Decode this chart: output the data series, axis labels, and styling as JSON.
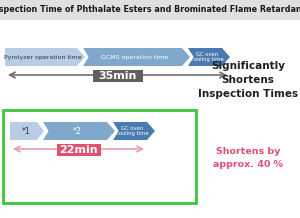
{
  "title": "Inspection Time of Phthalate Esters and Brominated Flame Retardants",
  "title_bg": "#e0e0e0",
  "bg_color": "#ffffff",
  "label1": "Pyrolyzer operation time",
  "label2": "GCMS operation time",
  "label3": "GC oven\ncooling time",
  "label_b1": "*1",
  "label_b2": "*2",
  "label_b3": "GC oven\ncooling time",
  "min35_label": "35min",
  "min22_label": "22min",
  "min35_bg": "#606060",
  "min22_bg": "#e05070",
  "green_border": "#3dc43d",
  "right_text1": "Significantly\nShortens\nInspection Times",
  "right_text2": "Shortens by\napprox. 40 %",
  "right_text1_color": "#202020",
  "right_text2_color": "#e05070",
  "color_light": "#b8cce4",
  "color_mid": "#7fa8cc",
  "color_dark": "#4a7ab0",
  "arrow_gray": "#707070",
  "arrow_pink": "#e8a0b0"
}
